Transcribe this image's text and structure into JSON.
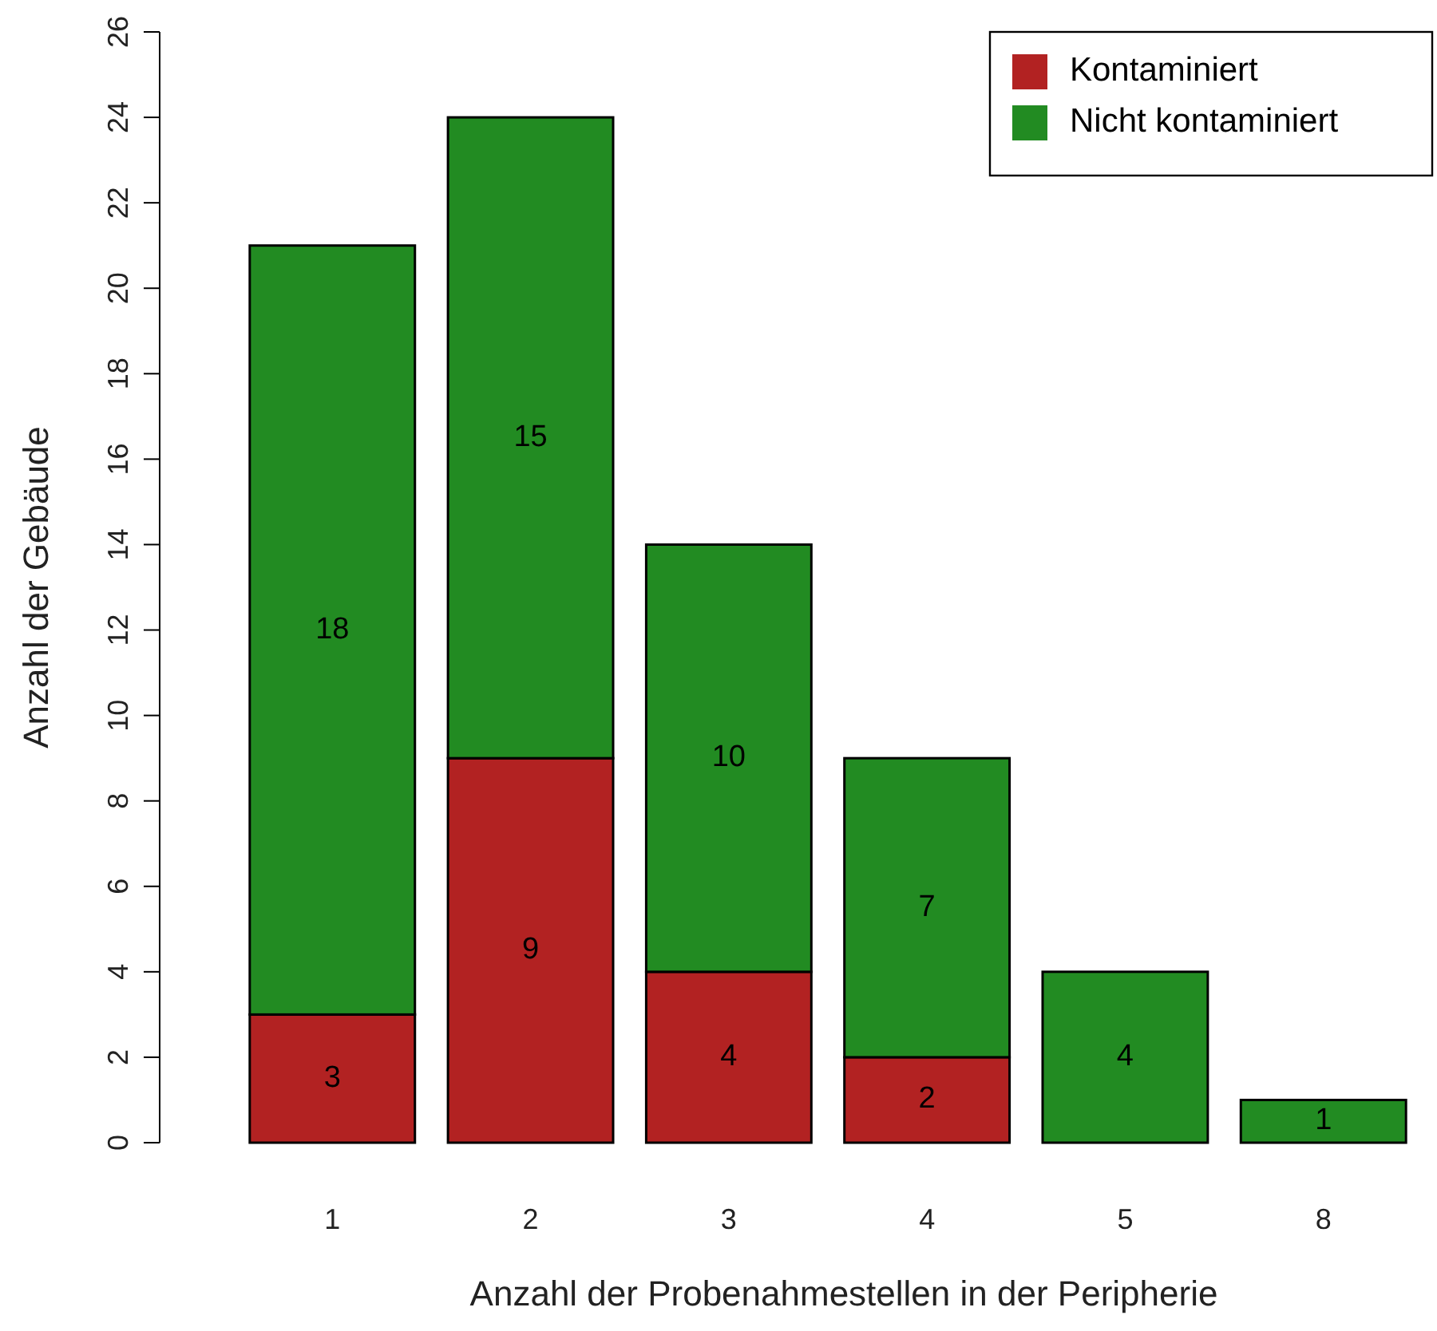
{
  "chart_data": {
    "type": "bar",
    "stacked": true,
    "xlabel": "Anzahl der Probenahmestellen in der Peripherie",
    "ylabel": "Anzahl der Gebäude",
    "categories": [
      "1",
      "2",
      "3",
      "4",
      "5",
      "8"
    ],
    "series": [
      {
        "name": "Kontaminiert",
        "color": "#b22222",
        "values": [
          3,
          9,
          4,
          2,
          0,
          0
        ],
        "value_labels": [
          "3",
          "9",
          "4",
          "2",
          null,
          null
        ]
      },
      {
        "name": "Nicht kontaminiert",
        "color": "#228b22",
        "values": [
          18,
          15,
          10,
          7,
          4,
          1
        ],
        "value_labels": [
          "18",
          "15",
          "10",
          "7",
          "4",
          "1"
        ]
      }
    ],
    "ylim": [
      0,
      26
    ],
    "yticks": [
      0,
      2,
      4,
      6,
      8,
      10,
      12,
      14,
      16,
      18,
      20,
      22,
      24,
      26
    ],
    "grid": false,
    "legend": "top right"
  }
}
